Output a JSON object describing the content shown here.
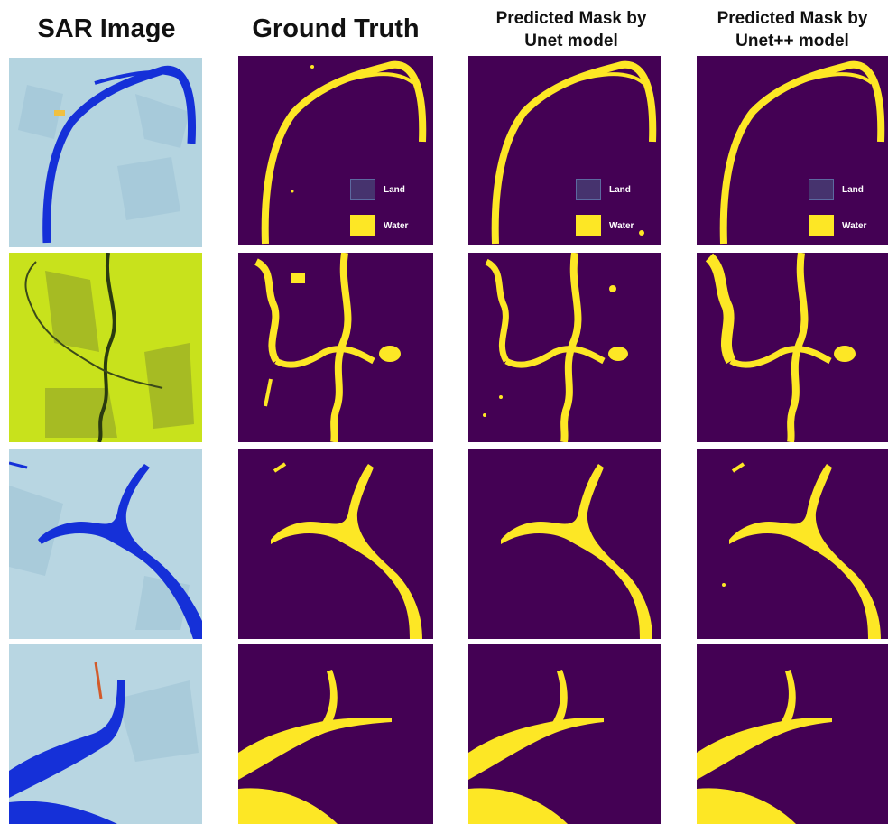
{
  "figure": {
    "columns": [
      {
        "label": "SAR Image"
      },
      {
        "label": "Ground Truth"
      },
      {
        "label": "Predicted Mask by Unet model"
      },
      {
        "label": "Predicted Mask by Unet++ model"
      }
    ],
    "legend": [
      {
        "label": "Land",
        "color": "#440154"
      },
      {
        "label": "Water",
        "color": "#fde725"
      }
    ],
    "colors": {
      "mask_background": "#440154",
      "mask_water": "#fde725",
      "sar_water": "#1530d8",
      "sar_land_blue": "#b4d4e0",
      "sar_land_green": "#c8e21c"
    }
  }
}
